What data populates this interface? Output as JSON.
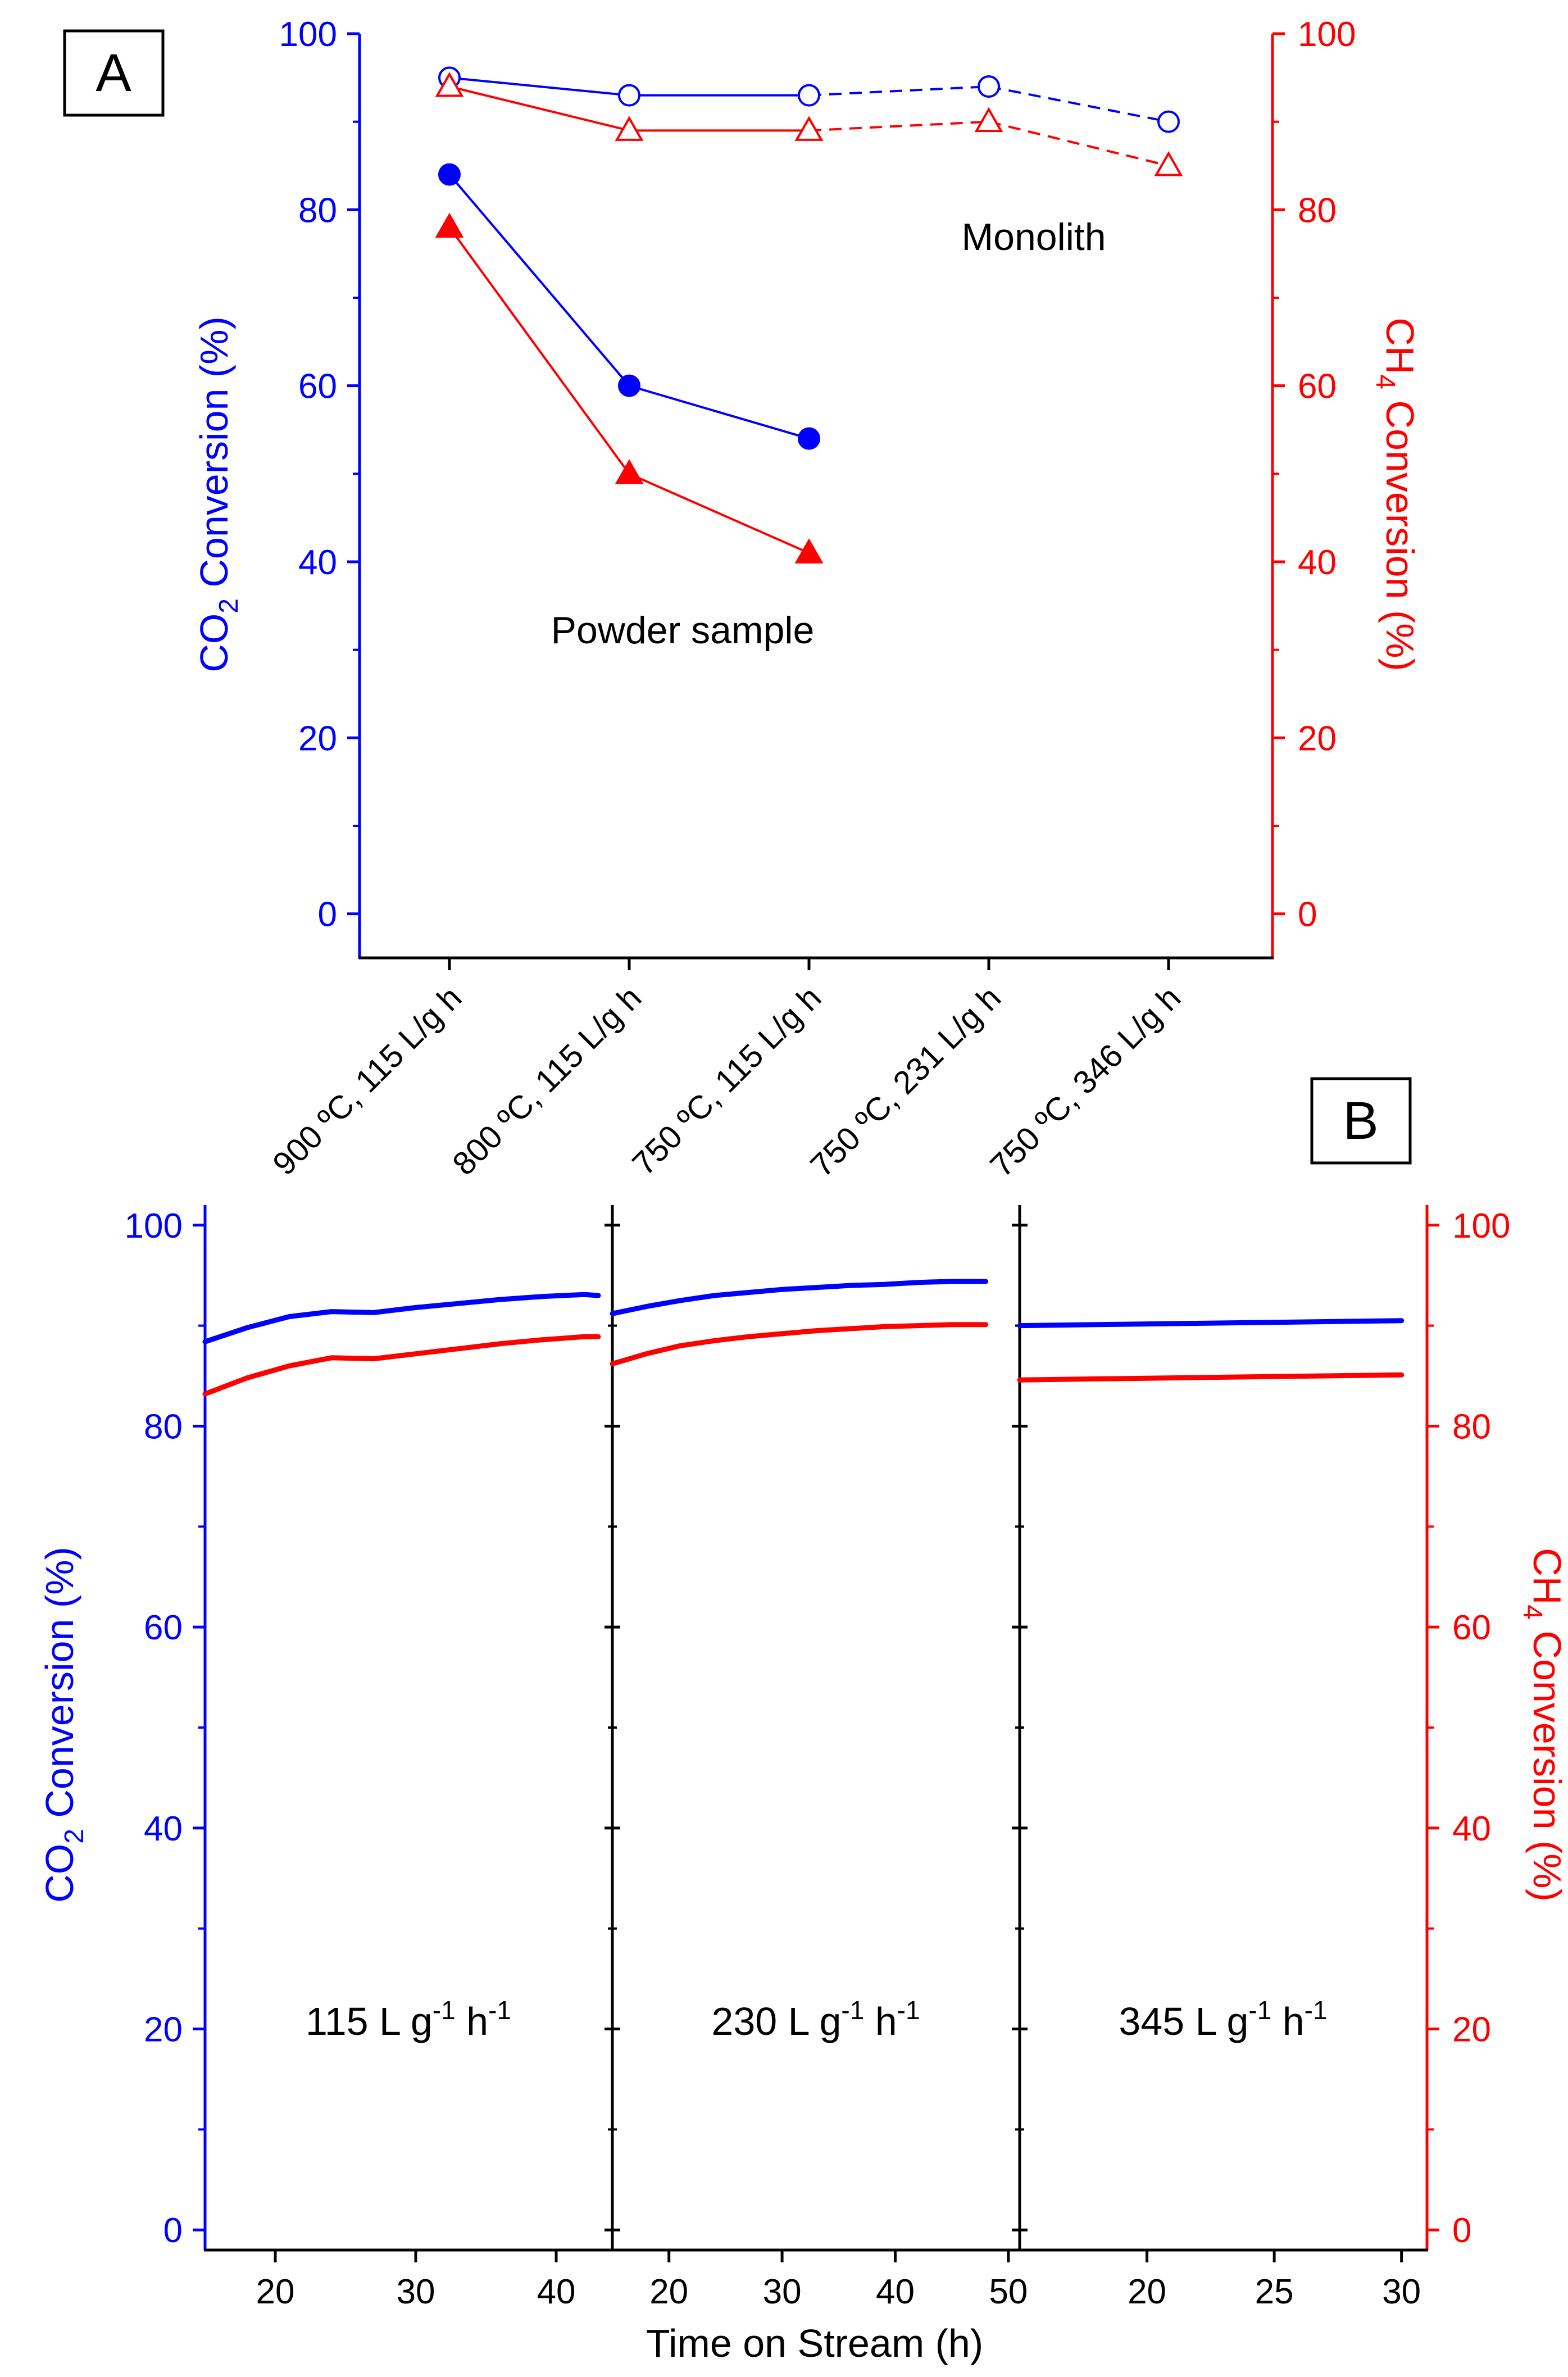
{
  "colors": {
    "co2": "#0000ff",
    "ch4": "#ff0000",
    "axis": "#000000"
  },
  "chart_data": [
    {
      "panel": "A",
      "type": "line",
      "categories": [
        "900 ºC, 115 L/g h",
        "800 ºC, 115 L/g h",
        "750 ºC, 115 L/g h",
        "750 ºC, 231 L/g h",
        "750 ºC, 346 L/g h"
      ],
      "left_axis": {
        "label_main": "CO",
        "label_sub": "2",
        "label_rest": " Conversion (%)",
        "ylim": [
          -5,
          100
        ],
        "ticks": [
          0,
          20,
          40,
          60,
          80,
          100
        ]
      },
      "right_axis": {
        "label_main": "CH",
        "label_sub": "4",
        "label_rest": " Conversion (%)",
        "ylim": [
          -5,
          100
        ],
        "ticks": [
          0,
          20,
          40,
          60,
          80,
          100
        ]
      },
      "annotations": {
        "monolith": "Monolith",
        "powder": "Powder sample"
      },
      "series": [
        {
          "name": "Monolith CO2",
          "color": "#0000ff",
          "marker": "circle",
          "filled": false,
          "values": [
            95,
            93,
            93,
            94,
            90
          ],
          "solid_until": 2
        },
        {
          "name": "Monolith CH4",
          "color": "#ff0000",
          "marker": "triangle",
          "filled": false,
          "values": [
            94,
            89,
            89,
            90,
            85
          ],
          "solid_until": 2
        },
        {
          "name": "Powder CO2",
          "color": "#0000ff",
          "marker": "circle",
          "filled": true,
          "values": [
            84,
            60,
            54,
            null,
            null
          ],
          "solid_until": 2
        },
        {
          "name": "Powder CH4",
          "color": "#ff0000",
          "marker": "triangle",
          "filled": true,
          "values": [
            78,
            50,
            41,
            null,
            null
          ],
          "solid_until": 2
        }
      ]
    },
    {
      "panel": "B",
      "type": "line",
      "xlabel": "Time on Stream (h)",
      "left_axis": {
        "label_main": "CO",
        "label_sub": "2",
        "label_rest": " Conversion (%)",
        "ylim": [
          -2,
          102
        ],
        "ticks": [
          0,
          20,
          40,
          60,
          80,
          100
        ]
      },
      "right_axis": {
        "label_main": "CH",
        "label_sub": "4",
        "label_rest": " Conversion (%)",
        "ylim": [
          -2,
          102
        ],
        "ticks": [
          0,
          20,
          40,
          60,
          80,
          100
        ]
      },
      "subpanels": [
        {
          "label_pre": "115 L g",
          "sup1": "-1",
          "label_mid": " h",
          "sup2": "-1",
          "xlim": [
            15,
            44
          ],
          "xticks": [
            20,
            30,
            40
          ],
          "series": [
            {
              "name": "CO2",
              "color": "#0000ff",
              "points": [
                [
                  15,
                  88.4
                ],
                [
                  18,
                  89.8
                ],
                [
                  21,
                  90.9
                ],
                [
                  24,
                  91.4
                ],
                [
                  27,
                  91.3
                ],
                [
                  30,
                  91.8
                ],
                [
                  33,
                  92.2
                ],
                [
                  36,
                  92.6
                ],
                [
                  39,
                  92.9
                ],
                [
                  42,
                  93.1
                ],
                [
                  43,
                  93.0
                ]
              ]
            },
            {
              "name": "CH4",
              "color": "#ff0000",
              "points": [
                [
                  15,
                  83.2
                ],
                [
                  18,
                  84.8
                ],
                [
                  21,
                  86.0
                ],
                [
                  24,
                  86.8
                ],
                [
                  27,
                  86.7
                ],
                [
                  30,
                  87.2
                ],
                [
                  33,
                  87.7
                ],
                [
                  36,
                  88.2
                ],
                [
                  39,
                  88.6
                ],
                [
                  42,
                  88.9
                ],
                [
                  43,
                  88.9
                ]
              ]
            }
          ]
        },
        {
          "label_pre": "230 L g",
          "sup1": "-1",
          "label_mid": " h",
          "sup2": "-1",
          "xlim": [
            15,
            51
          ],
          "xticks": [
            20,
            30,
            40,
            50
          ],
          "series": [
            {
              "name": "CO2",
              "color": "#0000ff",
              "points": [
                [
                  15,
                  91.2
                ],
                [
                  18,
                  91.9
                ],
                [
                  21,
                  92.5
                ],
                [
                  24,
                  93.0
                ],
                [
                  27,
                  93.3
                ],
                [
                  30,
                  93.6
                ],
                [
                  33,
                  93.8
                ],
                [
                  36,
                  94.0
                ],
                [
                  39,
                  94.1
                ],
                [
                  42,
                  94.3
                ],
                [
                  45,
                  94.4
                ],
                [
                  48,
                  94.4
                ]
              ]
            },
            {
              "name": "CH4",
              "color": "#ff0000",
              "points": [
                [
                  15,
                  86.2
                ],
                [
                  18,
                  87.2
                ],
                [
                  21,
                  88.0
                ],
                [
                  24,
                  88.5
                ],
                [
                  27,
                  88.9
                ],
                [
                  30,
                  89.2
                ],
                [
                  33,
                  89.5
                ],
                [
                  36,
                  89.7
                ],
                [
                  39,
                  89.9
                ],
                [
                  42,
                  90.0
                ],
                [
                  45,
                  90.1
                ],
                [
                  48,
                  90.1
                ]
              ]
            }
          ]
        },
        {
          "label_pre": "345 L g",
          "sup1": "-1",
          "label_mid": " h",
          "sup2": "-1",
          "xlim": [
            15,
            31
          ],
          "xticks": [
            20,
            25,
            30
          ],
          "series": [
            {
              "name": "CO2",
              "color": "#0000ff",
              "points": [
                [
                  15,
                  90.0
                ],
                [
                  18,
                  90.1
                ],
                [
                  21,
                  90.2
                ],
                [
                  24,
                  90.3
                ],
                [
                  27,
                  90.4
                ],
                [
                  30,
                  90.5
                ]
              ]
            },
            {
              "name": "CH4",
              "color": "#ff0000",
              "points": [
                [
                  15,
                  84.6
                ],
                [
                  18,
                  84.7
                ],
                [
                  21,
                  84.8
                ],
                [
                  24,
                  84.9
                ],
                [
                  27,
                  85.0
                ],
                [
                  30,
                  85.1
                ]
              ]
            }
          ]
        }
      ]
    }
  ]
}
